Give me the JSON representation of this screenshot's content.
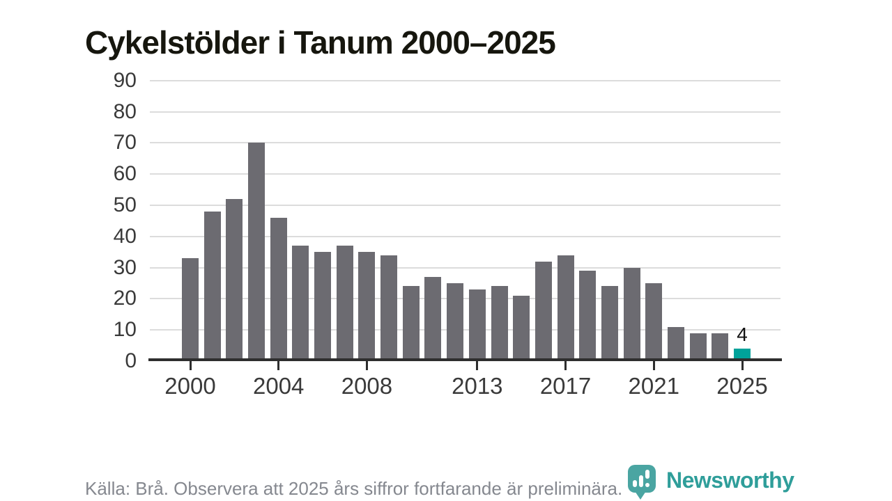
{
  "title": "Cykelstölder i Tanum 2000–2025",
  "source_note": "Källa: Brå. Observera att 2025 års siffror fortfarande är preliminära.",
  "branding": {
    "logo_text": "Newsworthy",
    "logo_icon": "newsworthy-speech-bubble-bar-chart-icon"
  },
  "colors": {
    "bar": "#6c6b71",
    "highlight": "#00a29a",
    "gridline": "#dcdcdc",
    "axis": "#2e2e2e",
    "tick_label": "#3a3a3a",
    "title": "#16160e",
    "source": "#85888f",
    "logo": "#4aa5a2",
    "logo_text": "#2f9e9a"
  },
  "chart_data": {
    "type": "bar",
    "title": "Cykelstölder i Tanum 2000–2025",
    "categories": [
      2000,
      2001,
      2002,
      2003,
      2004,
      2005,
      2006,
      2007,
      2008,
      2009,
      2010,
      2011,
      2012,
      2013,
      2014,
      2015,
      2016,
      2017,
      2018,
      2019,
      2020,
      2021,
      2022,
      2023,
      2024,
      2025
    ],
    "values": [
      33,
      48,
      52,
      70,
      46,
      37,
      35,
      37,
      35,
      34,
      24,
      27,
      25,
      23,
      24,
      21,
      32,
      34,
      29,
      24,
      30,
      25,
      11,
      9,
      9,
      4
    ],
    "highlight_index": 25,
    "bar_label": {
      "index": 25,
      "text": "4"
    },
    "xlabel": "",
    "ylabel": "",
    "xticks": [
      "2000",
      "2004",
      "2008",
      "2013",
      "2017",
      "2021",
      "2025"
    ],
    "xtick_years": [
      2000,
      2004,
      2008,
      2013,
      2017,
      2021,
      2025
    ],
    "yticks": [
      0,
      10,
      20,
      30,
      40,
      50,
      60,
      70,
      80,
      90
    ],
    "ylim": [
      0,
      90
    ],
    "grid": "horizontal",
    "legend": "none"
  }
}
